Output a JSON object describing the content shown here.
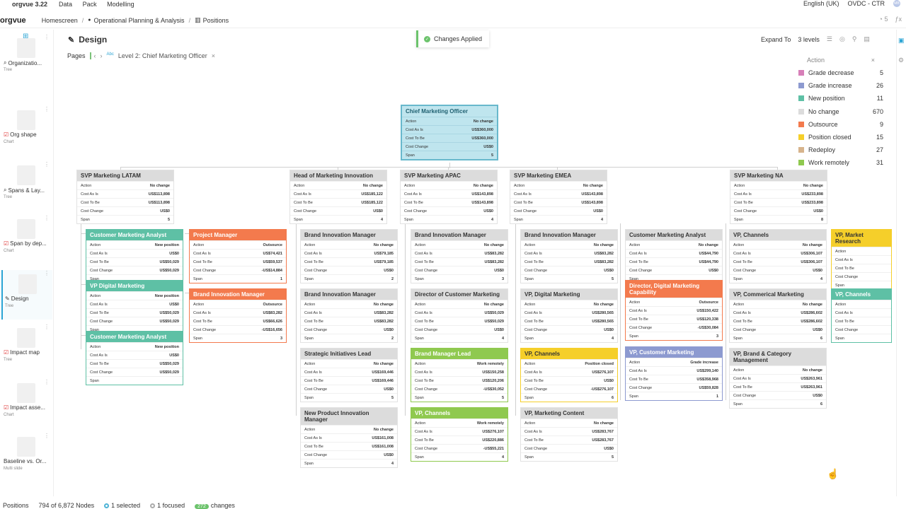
{
  "app": {
    "name": "orgvue 3.22",
    "menu": [
      "Data",
      "Pack",
      "Modelling"
    ],
    "language": "English (UK)",
    "workspace": "OVDC - CTR",
    "avatar": "MB",
    "notif": "5"
  },
  "breadcrumb": {
    "brand": "orgvue",
    "items": [
      "Homescreen",
      "Operational Planning & Analysis"
    ],
    "current": "Positions"
  },
  "page": {
    "title": "Design",
    "pages_label": "Pages",
    "page_chip": "Level 2: Chief Marketing Officer",
    "chip_prefix": "Abc"
  },
  "toast": {
    "text": "Changes Applied"
  },
  "expand": {
    "label": "Expand To",
    "value": "3 levels"
  },
  "sidebar": [
    {
      "label": "Organizatio...",
      "sub": "Tree"
    },
    {
      "label": "Org shape",
      "sub": "Chart"
    },
    {
      "label": "Spans & Lay...",
      "sub": "Tree"
    },
    {
      "label": "Span by dep...",
      "sub": "Chart"
    },
    {
      "label": "Design",
      "sub": "Tree"
    },
    {
      "label": "Impact map",
      "sub": "Tree"
    },
    {
      "label": "Impact asse...",
      "sub": "Chart"
    },
    {
      "label": "Baseline vs. Or...",
      "sub": "Multi slide"
    }
  ],
  "legend": {
    "title": "Action",
    "items": [
      {
        "name": "Grade decrease",
        "count": "5",
        "color": "#d77fb8"
      },
      {
        "name": "Grade increase",
        "count": "26",
        "color": "#8d9ad0"
      },
      {
        "name": "New position",
        "count": "11",
        "color": "#5ec0a5"
      },
      {
        "name": "No change",
        "count": "670",
        "color": "#dcdcdc"
      },
      {
        "name": "Outsource",
        "count": "9",
        "color": "#f37a4d"
      },
      {
        "name": "Position closed",
        "count": "15",
        "color": "#f5cf2a"
      },
      {
        "name": "Redeploy",
        "count": "27",
        "color": "#d7b48c"
      },
      {
        "name": "Work remotely",
        "count": "31",
        "color": "#8fc94f"
      }
    ]
  },
  "card_labels": {
    "action": "Action",
    "asis": "Cost As Is",
    "tobe": "Cost To Be",
    "change": "Cost Change",
    "span": "Span"
  },
  "cards": [
    {
      "title": "Chief Marketing Officer",
      "action": "No change",
      "asis": "US$360,000",
      "tobe": "US$360,000",
      "change": "US$0",
      "span": "5"
    },
    {
      "title": "SVP Marketing LATAM",
      "action": "No change",
      "asis": "US$113,898",
      "tobe": "US$113,898",
      "change": "US$0",
      "span": "5"
    },
    {
      "title": "Head of Marketing Innovation",
      "action": "No change",
      "asis": "US$185,122",
      "tobe": "US$185,122",
      "change": "US$0",
      "span": "4"
    },
    {
      "title": "SVP Marketing APAC",
      "action": "No change",
      "asis": "US$143,898",
      "tobe": "US$143,898",
      "change": "US$0",
      "span": "4"
    },
    {
      "title": "SVP Marketing EMEA",
      "action": "No change",
      "asis": "US$143,898",
      "tobe": "US$143,898",
      "change": "US$0",
      "span": "4"
    },
    {
      "title": "SVP Marketing NA",
      "action": "No change",
      "asis": "US$233,898",
      "tobe": "US$233,898",
      "change": "US$0",
      "span": "8"
    },
    {
      "title": "Customer Marketing Analyst",
      "action": "New position",
      "asis": "US$0",
      "tobe": "US$50,029",
      "change": "US$50,029",
      "span": ""
    },
    {
      "title": "Project Manager",
      "action": "Outsource",
      "asis": "US$74,421",
      "tobe": "US$59,537",
      "change": "-US$14,884",
      "span": "1"
    },
    {
      "title": "VP Digital Marketing",
      "action": "New position",
      "asis": "US$0",
      "tobe": "US$50,029",
      "change": "US$50,029",
      "span": ""
    },
    {
      "title": "Brand Innovation Manager",
      "action": "Outsource",
      "asis": "US$83,282",
      "tobe": "US$66,626",
      "change": "-US$16,656",
      "span": "3"
    },
    {
      "title": "Customer Marketing Analyst",
      "action": "New position",
      "asis": "US$0",
      "tobe": "US$50,029",
      "change": "US$50,029",
      "span": ""
    },
    {
      "title": "Brand Innovation Manager",
      "action": "No change",
      "asis": "US$79,185",
      "tobe": "US$79,185",
      "change": "US$0",
      "span": "2"
    },
    {
      "title": "Brand Innovation Manager",
      "action": "No change",
      "asis": "US$83,282",
      "tobe": "US$83,282",
      "change": "US$0",
      "span": "2"
    },
    {
      "title": "Strategic Initiatives Lead",
      "action": "No change",
      "asis": "US$169,446",
      "tobe": "US$169,446",
      "change": "US$0",
      "span": "5"
    },
    {
      "title": "New Product Innovation Manager",
      "action": "No change",
      "asis": "US$161,008",
      "tobe": "US$161,008",
      "change": "US$0",
      "span": "4"
    },
    {
      "title": "Brand Innovation Manager",
      "action": "No change",
      "asis": "US$83,282",
      "tobe": "US$83,282",
      "change": "US$0",
      "span": "3"
    },
    {
      "title": "Director of Customer Marketing",
      "action": "No change",
      "asis": "US$50,029",
      "tobe": "US$50,029",
      "change": "US$0",
      "span": "4"
    },
    {
      "title": "Brand Manager Lead",
      "action": "Work remotely",
      "asis": "US$150,258",
      "tobe": "US$120,206",
      "change": "-US$30,052",
      "span": "5"
    },
    {
      "title": "VP, Channels",
      "action": "Work remotely",
      "asis": "US$276,107",
      "tobe": "US$220,886",
      "change": "-US$55,221",
      "span": "4"
    },
    {
      "title": "Brand Innovation Manager",
      "action": "No change",
      "asis": "US$83,282",
      "tobe": "US$83,282",
      "change": "US$0",
      "span": "5"
    },
    {
      "title": "VP, Digital Marketing",
      "action": "No change",
      "asis": "US$280,565",
      "tobe": "US$280,565",
      "change": "US$0",
      "span": "4"
    },
    {
      "title": "VP, Channels",
      "action": "Position closed",
      "asis": "US$276,107",
      "tobe": "US$0",
      "change": "-US$276,107",
      "span": "6"
    },
    {
      "title": "VP, Marketing Content",
      "action": "No change",
      "asis": "US$283,767",
      "tobe": "US$283,767",
      "change": "US$0",
      "span": "5"
    },
    {
      "title": "Customer Marketing Analyst",
      "action": "No change",
      "asis": "US$44,790",
      "tobe": "US$44,790",
      "change": "US$0",
      "span": ""
    },
    {
      "title": "Director, Digital Marketing Capability",
      "action": "Outsource",
      "asis": "US$150,422",
      "tobe": "US$120,338",
      "change": "-US$30,084",
      "span": "3"
    },
    {
      "title": "VP, Customer Marketing",
      "action": "Grade increase",
      "asis": "US$299,140",
      "tobe": "US$358,968",
      "change": "US$59,828",
      "span": "1"
    },
    {
      "title": "VP, Channels",
      "action": "No change",
      "asis": "US$306,107",
      "tobe": "US$306,107",
      "change": "US$0",
      "span": "4"
    },
    {
      "title": "VP, Commerical Marketing",
      "action": "No change",
      "asis": "US$286,602",
      "tobe": "US$286,602",
      "change": "US$0",
      "span": "6"
    },
    {
      "title": "VP, Brand & Category Management",
      "action": "No change",
      "asis": "US$263,961",
      "tobe": "US$263,961",
      "change": "US$0",
      "span": "6"
    },
    {
      "title": "VP, Market Research",
      "action": "",
      "asis": "",
      "tobe": "",
      "change": "",
      "span": ""
    },
    {
      "title": "VP, Channels",
      "action": "",
      "asis": "",
      "tobe": "",
      "change": "",
      "span": ""
    }
  ],
  "status": {
    "view": "Positions",
    "nodes": "794 of 6,872 Nodes",
    "selected": "1 selected",
    "focused": "1 focused",
    "changes_count": "272",
    "changes_label": "changes"
  }
}
